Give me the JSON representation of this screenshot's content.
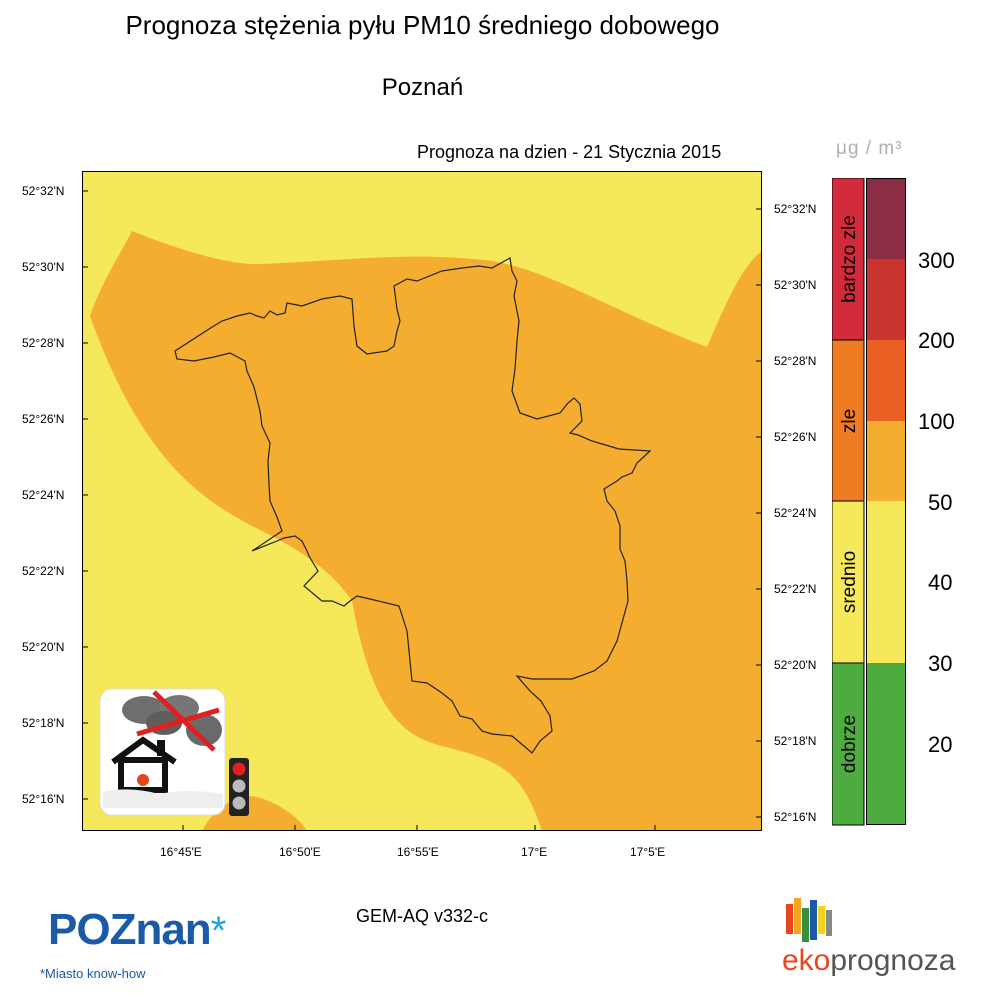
{
  "header": {
    "title": "Prognoza stężenia pyłu PM10 średniego dobowego",
    "city": "Poznań",
    "forecast_date": "Prognoza na dzien -  21 Stycznia 2015"
  },
  "map": {
    "left_lat_labels": [
      "52°32'N",
      "52°30'N",
      "52°28'N",
      "52°26'N",
      "52°24'N",
      "52°22'N",
      "52°20'N",
      "52°18'N",
      "52°16'N"
    ],
    "right_lat_labels": [
      "52°32'N",
      "52°30'N",
      "52°28'N",
      "52°26'N",
      "52°24'N",
      "52°22'N",
      "52°20'N",
      "52°18'N",
      "52°16'N"
    ],
    "lon_labels": [
      "16°45'E",
      "16°50'E",
      "16°55'E",
      "17°E",
      "17°5'E"
    ],
    "colors": {
      "background": "#f5e85a",
      "orange_zone": "#f5ad30",
      "boundary": "#222222"
    },
    "icon_name": "no-smoke-house-traffic-light-icon"
  },
  "legend": {
    "unit": "μg / m³",
    "categories": [
      {
        "label": "bardzo zle",
        "color": "#d42b3c"
      },
      {
        "label": "zle",
        "color": "#ef7b22"
      },
      {
        "label": "srednio",
        "color": "#f5e85a"
      },
      {
        "label": "dobrze",
        "color": "#4eab3f"
      }
    ],
    "scale_colors": [
      "#8b2d45",
      "#c9352e",
      "#ea6024",
      "#f5ad30",
      "#f5e85a",
      "#f5e85a",
      "#4eab3f",
      "#4eab3f"
    ],
    "levels": [
      "300",
      "200",
      "100",
      "50",
      "40",
      "30",
      "20"
    ]
  },
  "footer": {
    "model": "GEM-AQ v332-c",
    "poznan_logo": "POZnan",
    "poznan_star": "*",
    "poznan_tagline": "*Miasto know-how",
    "eko_prefix": "eko",
    "eko_suffix": "prognoza",
    "eko_bar_colors": [
      "#e8441d",
      "#f2a51f",
      "#3a8f3c",
      "#1a5aa8",
      "#f4d21e",
      "#888888"
    ]
  }
}
